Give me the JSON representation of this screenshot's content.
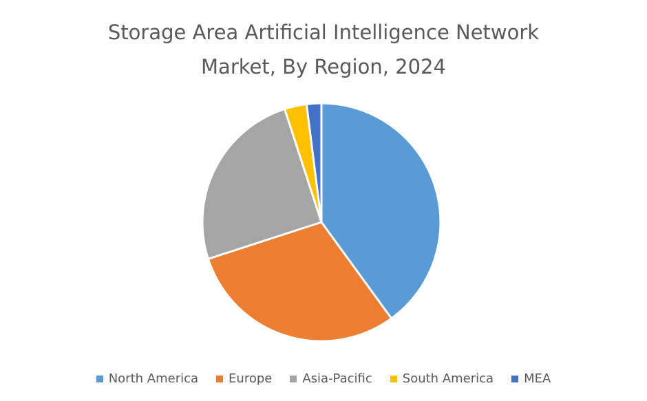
{
  "chart_data": {
    "type": "pie",
    "title": "Storage Area Artificial Intelligence Network Market, By Region, 2024",
    "categories": [
      "North America",
      "Europe",
      "Asia-Pacific",
      "South America",
      "MEA"
    ],
    "values": [
      40,
      30,
      25,
      3,
      2
    ],
    "colors": [
      "#5b9bd5",
      "#ed7d31",
      "#a5a5a5",
      "#ffc000",
      "#4472c4"
    ],
    "legend": "bottom"
  }
}
